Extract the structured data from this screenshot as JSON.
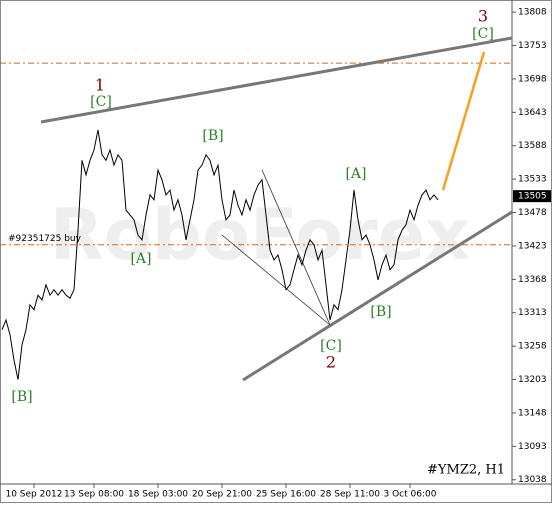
{
  "chart_data": {
    "type": "line",
    "symbol": "#YMZ2, H1",
    "watermark": "RoboForex",
    "color": "#000000",
    "values": [
      13285,
      13301,
      13277,
      13235,
      13203,
      13260,
      13285,
      13326,
      13318,
      13342,
      13334,
      13359,
      13342,
      13351,
      13342,
      13351,
      13342,
      13337,
      13351,
      13449,
      13564,
      13540,
      13564,
      13581,
      13614,
      13573,
      13564,
      13581,
      13556,
      13573,
      13564,
      13482,
      13474,
      13466,
      13441,
      13433,
      13474,
      13507,
      13499,
      13548,
      13532,
      13507,
      13515,
      13482,
      13499,
      13474,
      13433,
      13466,
      13499,
      13548,
      13556,
      13573,
      13564,
      13540,
      13556,
      13499,
      13466,
      13474,
      13515,
      13490,
      13474,
      13499,
      13482,
      13507,
      13523,
      13532,
      13474,
      13416,
      13400,
      13408,
      13384,
      13351,
      13359,
      13384,
      13408,
      13392,
      13416,
      13433,
      13425,
      13400,
      13416,
      13359,
      13301,
      13326,
      13318,
      13351,
      13400,
      13449,
      13515,
      13466,
      13433,
      13441,
      13425,
      13400,
      13367,
      13392,
      13408,
      13384,
      13392,
      13433,
      13449,
      13458,
      13482,
      13466,
      13490,
      13507,
      13515,
      13499,
      13507,
      13499
    ],
    "current_price": 13505,
    "ylim": [
      13031,
      13828
    ],
    "yticks": [
      13808,
      13753,
      13698,
      13643,
      13588,
      13533,
      13478,
      13423,
      13368,
      13313,
      13258,
      13203,
      13148,
      13093,
      13038
    ],
    "xticks": [
      {
        "value": 8,
        "label": "10 Sep 2012"
      },
      {
        "value": 23,
        "label": "13 Sep 08:00"
      },
      {
        "value": 39,
        "label": "18 Sep 03:00"
      },
      {
        "value": 55,
        "label": "20 Sep 21:00"
      },
      {
        "value": 71,
        "label": "25 Sep 16:00"
      },
      {
        "value": 87,
        "label": "28 Sep 11:00"
      },
      {
        "value": 102,
        "label": "3 Oct 06:00"
      }
    ],
    "levels": [
      {
        "value": 13724,
        "color": "#d2691e"
      },
      {
        "value": 13425,
        "color": "#d2691e",
        "label": "#92351725 buy"
      }
    ],
    "annotations": [
      "1",
      "[C]",
      "[B]",
      "[B]",
      "[A]",
      "[A]",
      "[B]",
      "[C]",
      "2",
      "3",
      "[C]"
    ]
  }
}
